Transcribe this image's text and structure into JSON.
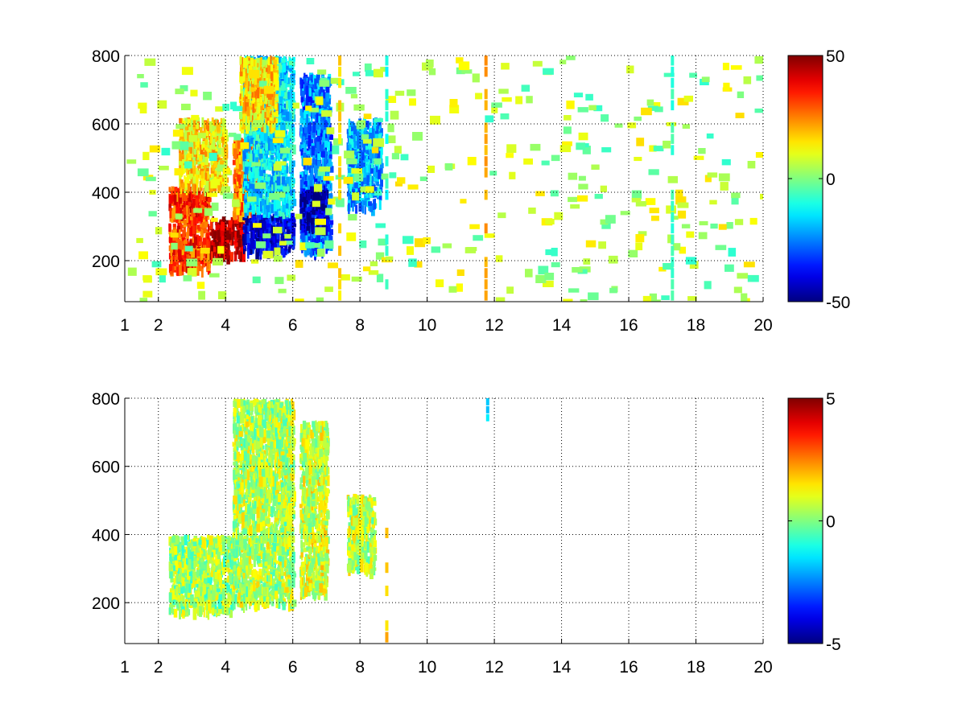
{
  "figure": {
    "background": "#ffffff"
  },
  "chart_data": [
    {
      "type": "heatmap",
      "title": "",
      "xlabel": "",
      "ylabel": "",
      "xlim": [
        1,
        20
      ],
      "ylim": [
        80,
        800
      ],
      "x_ticks": [
        1,
        2,
        4,
        6,
        8,
        10,
        12,
        14,
        16,
        18,
        20
      ],
      "y_ticks": [
        200,
        400,
        600,
        800
      ],
      "grid": true,
      "grid_style": "dotted",
      "colormap": "jet",
      "colorbar": {
        "range": [
          -50,
          50
        ],
        "ticks": [
          50,
          0,
          -50
        ]
      },
      "clusters": [
        {
          "x_range": [
            2.3,
            3.5
          ],
          "y_range": [
            180,
            420
          ],
          "value": 32
        },
        {
          "x_range": [
            3.5,
            4.5
          ],
          "y_range": [
            220,
            330
          ],
          "value": 45
        },
        {
          "x_range": [
            2.6,
            4.0
          ],
          "y_range": [
            420,
            620
          ],
          "value": 15
        },
        {
          "x_range": [
            4.2,
            5.0
          ],
          "y_range": [
            330,
            560
          ],
          "value": 25
        },
        {
          "x_range": [
            4.5,
            6.0
          ],
          "y_range": [
            230,
            340
          ],
          "value": -40
        },
        {
          "x_range": [
            4.5,
            6.0
          ],
          "y_range": [
            350,
            800
          ],
          "value": -15
        },
        {
          "x_range": [
            4.4,
            5.5
          ],
          "y_range": [
            600,
            800
          ],
          "value": 15
        },
        {
          "x_range": [
            6.2,
            7.1
          ],
          "y_range": [
            230,
            750
          ],
          "value": -25
        },
        {
          "x_range": [
            6.2,
            7.0
          ],
          "y_range": [
            300,
            420
          ],
          "value": -45
        },
        {
          "x_range": [
            7.6,
            8.6
          ],
          "y_range": [
            360,
            620
          ],
          "value": -20
        },
        {
          "x_range": [
            1.0,
            20.0
          ],
          "y_range": [
            80,
            800
          ],
          "value": 4,
          "kind": "noise"
        }
      ],
      "vertical_streaks": [
        {
          "x": 7.4,
          "value": 15
        },
        {
          "x": 8.8,
          "value": -10
        },
        {
          "x": 11.75,
          "value": 22
        },
        {
          "x": 17.3,
          "value": -8
        }
      ]
    },
    {
      "type": "heatmap",
      "title": "",
      "xlabel": "",
      "ylabel": "",
      "xlim": [
        1,
        20
      ],
      "ylim": [
        80,
        800
      ],
      "x_ticks": [
        1,
        2,
        4,
        6,
        8,
        10,
        12,
        14,
        16,
        18,
        20
      ],
      "y_ticks": [
        200,
        400,
        600,
        800
      ],
      "grid": true,
      "grid_style": "dotted",
      "colormap": "jet",
      "colorbar": {
        "range": [
          -5,
          5
        ],
        "ticks": [
          5,
          0,
          -5
        ]
      },
      "clusters": [
        {
          "x_range": [
            2.3,
            4.2
          ],
          "y_range": [
            180,
            400
          ],
          "value": 0.3
        },
        {
          "x_range": [
            4.2,
            6.0
          ],
          "y_range": [
            200,
            800
          ],
          "value": 0.5
        },
        {
          "x_range": [
            6.2,
            7.0
          ],
          "y_range": [
            230,
            740
          ],
          "value": 0.8
        },
        {
          "x_range": [
            7.6,
            8.4
          ],
          "y_range": [
            300,
            520
          ],
          "value": 0.6
        }
      ],
      "vertical_streaks": [
        {
          "x": 8.8,
          "y_range": [
            80,
            420
          ],
          "value": 1.8
        },
        {
          "x": 11.8,
          "y_range": [
            730,
            800
          ],
          "value": -1.5
        }
      ]
    }
  ]
}
